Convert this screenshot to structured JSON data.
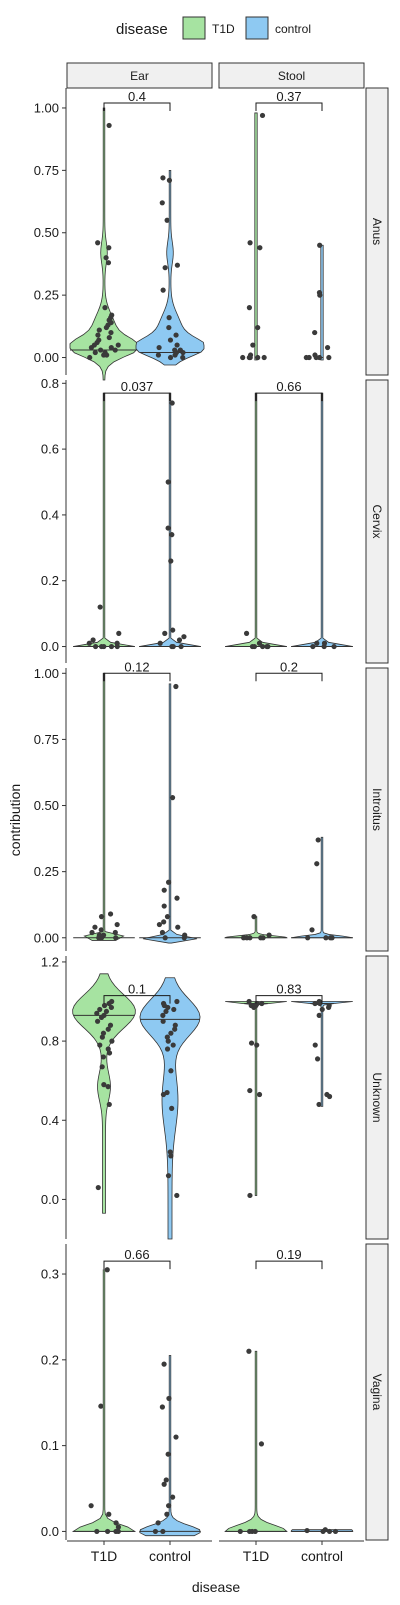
{
  "legend": {
    "title": "disease",
    "items": [
      {
        "label": "T1D",
        "color": "#a6e3a1"
      },
      {
        "label": "control",
        "color": "#8ec9f2"
      }
    ]
  },
  "columns": [
    "Ear",
    "Stool"
  ],
  "xlabel": "disease",
  "ylabel": "contribution",
  "chart_data": {
    "type": "violin",
    "categories": [
      "T1D",
      "control"
    ],
    "colors": {
      "T1D": "#a6e3a1",
      "control": "#8ec9f2"
    },
    "xlabel": "disease",
    "ylabel": "contribution",
    "columns": [
      "Ear",
      "Stool"
    ],
    "legend_position": "top",
    "grid": false,
    "rows": [
      {
        "name": "Anus",
        "ylim": [
          -0.07,
          1.08
        ],
        "yticks": [
          0,
          0.25,
          0.5,
          0.75,
          1
        ],
        "yticklabels": [
          "0.00",
          "0.25",
          "0.50",
          "0.75",
          "1.00"
        ],
        "panels": [
          {
            "column": "Ear",
            "pvalue": "0.4",
            "bracket_y": 1.02,
            "groups": [
              {
                "group": "T1D",
                "min": -0.09,
                "max": 1.0,
                "median": 0.03,
                "violin": "wide",
                "points": [
                  0.93,
                  0.46,
                  0.44,
                  0.4,
                  0.38,
                  0.2,
                  0.17,
                  0.16,
                  0.15,
                  0.14,
                  0.13,
                  0.12,
                  0.11,
                  0.1,
                  0.09,
                  0.08,
                  0.07,
                  0.06,
                  0.05,
                  0.05,
                  0.04,
                  0.04,
                  0.03,
                  0.03,
                  0.02,
                  0.02,
                  0.01,
                  0.01,
                  0.0
                ]
              },
              {
                "group": "control",
                "min": -0.03,
                "max": 0.75,
                "median": 0.02,
                "violin": "wide",
                "points": [
                  0.72,
                  0.71,
                  0.62,
                  0.55,
                  0.37,
                  0.36,
                  0.27,
                  0.16,
                  0.12,
                  0.09,
                  0.07,
                  0.05,
                  0.04,
                  0.03,
                  0.03,
                  0.02,
                  0.02,
                  0.01,
                  0.01,
                  0.0,
                  0.0
                ]
              }
            ]
          },
          {
            "column": "Stool",
            "pvalue": "0.37",
            "bracket_y": 1.02,
            "groups": [
              {
                "group": "T1D",
                "min": -0.01,
                "max": 0.98,
                "median": 0.0,
                "violin": "thin",
                "points": [
                  0.97,
                  0.46,
                  0.44,
                  0.2,
                  0.12,
                  0.05,
                  0.01,
                  0.0,
                  0.0,
                  0.0,
                  0.0,
                  0.0
                ]
              },
              {
                "group": "control",
                "min": -0.01,
                "max": 0.45,
                "median": 0.0,
                "violin": "thin",
                "points": [
                  0.45,
                  0.26,
                  0.25,
                  0.1,
                  0.04,
                  0.01,
                  0.0,
                  0.0,
                  0.0,
                  0.0,
                  0.0
                ]
              }
            ]
          }
        ]
      },
      {
        "name": "Cervix",
        "ylim": [
          -0.05,
          0.81
        ],
        "yticks": [
          0,
          0.2,
          0.4,
          0.6,
          0.8
        ],
        "yticklabels": [
          "0.0",
          "0.2",
          "0.4",
          "0.6",
          "0.8"
        ],
        "panels": [
          {
            "column": "Ear",
            "pvalue": "0.037",
            "bracket_y": 0.77,
            "groups": [
              {
                "group": "T1D",
                "min": 0.0,
                "max": 0.77,
                "median": 0.0,
                "violin": "flat",
                "points": [
                  0.12,
                  0.04,
                  0.02,
                  0.01,
                  0.01,
                  0.0,
                  0.0,
                  0.0,
                  0.0,
                  0.0
                ]
              },
              {
                "group": "control",
                "min": 0.0,
                "max": 0.77,
                "median": 0.0,
                "violin": "flat",
                "points": [
                  0.74,
                  0.5,
                  0.36,
                  0.34,
                  0.26,
                  0.05,
                  0.04,
                  0.03,
                  0.02,
                  0.01,
                  0.0,
                  0.0,
                  0.0
                ]
              }
            ]
          },
          {
            "column": "Stool",
            "pvalue": "0.66",
            "bracket_y": 0.77,
            "groups": [
              {
                "group": "T1D",
                "min": 0.0,
                "max": 0.77,
                "median": 0.0,
                "violin": "flat",
                "points": [
                  0.04,
                  0.01,
                  0.0,
                  0.0,
                  0.0,
                  0.0,
                  0.0
                ]
              },
              {
                "group": "control",
                "min": 0.0,
                "max": 0.77,
                "median": 0.0,
                "violin": "flat",
                "points": [
                  0.01,
                  0.01,
                  0.0,
                  0.0,
                  0.0
                ]
              }
            ]
          }
        ]
      },
      {
        "name": "Introitus",
        "ylim": [
          -0.05,
          1.02
        ],
        "yticks": [
          0,
          0.25,
          0.5,
          0.75,
          1
        ],
        "yticklabels": [
          "0.00",
          "0.25",
          "0.50",
          "0.75",
          "1.00"
        ],
        "panels": [
          {
            "column": "Ear",
            "pvalue": "0.12",
            "bracket_y": 1.0,
            "groups": [
              {
                "group": "T1D",
                "min": -0.01,
                "max": 1.0,
                "median": 0.0,
                "violin": "flat",
                "points": [
                  0.09,
                  0.08,
                  0.05,
                  0.04,
                  0.03,
                  0.02,
                  0.02,
                  0.01,
                  0.01,
                  0.0,
                  0.0,
                  0.0
                ]
              },
              {
                "group": "control",
                "min": -0.02,
                "max": 0.96,
                "median": 0.0,
                "violin": "flat",
                "points": [
                  0.95,
                  0.53,
                  0.21,
                  0.18,
                  0.15,
                  0.12,
                  0.08,
                  0.06,
                  0.05,
                  0.04,
                  0.02,
                  0.01,
                  0.0,
                  0.0
                ]
              }
            ]
          },
          {
            "column": "Stool",
            "pvalue": "0.2",
            "bracket_y": 1.0,
            "groups": [
              {
                "group": "T1D",
                "min": 0.0,
                "max": 0.08,
                "median": 0.0,
                "violin": "flat",
                "points": [
                  0.08,
                  0.01,
                  0.0,
                  0.0,
                  0.0,
                  0.0,
                  0.0
                ]
              },
              {
                "group": "control",
                "min": 0.0,
                "max": 0.38,
                "median": 0.0,
                "violin": "flat",
                "points": [
                  0.37,
                  0.28,
                  0.03,
                  0.0,
                  0.0,
                  0.0,
                  0.0
                ]
              }
            ]
          }
        ]
      },
      {
        "name": "Unknown",
        "ylim": [
          -0.2,
          1.23
        ],
        "yticks": [
          0,
          0.4,
          0.8,
          1.2
        ],
        "yticklabels": [
          "0.0",
          "0.4",
          "0.8",
          "1.2"
        ],
        "panels": [
          {
            "column": "Ear",
            "pvalue": "0.1",
            "bracket_y": 1.03,
            "groups": [
              {
                "group": "T1D",
                "min": -0.07,
                "max": 1.14,
                "median": 0.93,
                "violin": "unknown-t1d",
                "points": [
                  1.0,
                  0.99,
                  0.98,
                  0.97,
                  0.96,
                  0.95,
                  0.94,
                  0.93,
                  0.92,
                  0.9,
                  0.88,
                  0.86,
                  0.84,
                  0.82,
                  0.8,
                  0.78,
                  0.76,
                  0.74,
                  0.72,
                  0.67,
                  0.58,
                  0.57,
                  0.48,
                  0.06
                ]
              },
              {
                "group": "control",
                "min": -0.2,
                "max": 1.12,
                "median": 0.91,
                "violin": "unknown-ctrl",
                "points": [
                  1.0,
                  0.99,
                  0.98,
                  0.97,
                  0.96,
                  0.95,
                  0.93,
                  0.9,
                  0.88,
                  0.86,
                  0.84,
                  0.82,
                  0.8,
                  0.78,
                  0.76,
                  0.65,
                  0.54,
                  0.53,
                  0.46,
                  0.24,
                  0.22,
                  0.12,
                  0.02
                ]
              }
            ]
          },
          {
            "column": "Stool",
            "pvalue": "0.83",
            "bracket_y": 1.03,
            "groups": [
              {
                "group": "T1D",
                "min": 0.02,
                "max": 1.0,
                "median": 0.99,
                "violin": "flat-top",
                "points": [
                  1.0,
                  0.99,
                  0.99,
                  0.98,
                  0.98,
                  0.97,
                  0.79,
                  0.78,
                  0.55,
                  0.53,
                  0.02
                ]
              },
              {
                "group": "control",
                "min": 0.47,
                "max": 1.0,
                "median": 0.99,
                "violin": "flat-top",
                "points": [
                  1.0,
                  0.99,
                  0.99,
                  0.98,
                  0.97,
                  0.96,
                  0.93,
                  0.78,
                  0.71,
                  0.53,
                  0.52,
                  0.48
                ]
              }
            ]
          }
        ]
      },
      {
        "name": "Vagina",
        "ylim": [
          -0.01,
          0.335
        ],
        "yticks": [
          0,
          0.1,
          0.2,
          0.3
        ],
        "yticklabels": [
          "0.0",
          "0.1",
          "0.2",
          "0.3"
        ],
        "panels": [
          {
            "column": "Ear",
            "pvalue": "0.66",
            "bracket_y": 0.315,
            "groups": [
              {
                "group": "T1D",
                "min": 0.0,
                "max": 0.305,
                "median": 0.0,
                "violin": "flat",
                "points": [
                  0.305,
                  0.146,
                  0.03,
                  0.02,
                  0.01,
                  0.005,
                  0.0,
                  0.0,
                  0.0,
                  0.0
                ]
              },
              {
                "group": "control",
                "min": -0.005,
                "max": 0.205,
                "median": 0.0,
                "violin": "flat",
                "points": [
                  0.195,
                  0.155,
                  0.145,
                  0.11,
                  0.09,
                  0.06,
                  0.055,
                  0.04,
                  0.03,
                  0.02,
                  0.01,
                  0.0,
                  0.0
                ]
              }
            ]
          },
          {
            "column": "Stool",
            "pvalue": "0.19",
            "bracket_y": 0.315,
            "groups": [
              {
                "group": "T1D",
                "min": 0.0,
                "max": 0.21,
                "median": 0.0,
                "violin": "flat",
                "points": [
                  0.21,
                  0.102,
                  0.0,
                  0.0,
                  0.0,
                  0.0
                ]
              },
              {
                "group": "control",
                "min": 0.0,
                "max": 0.002,
                "median": 0.0,
                "violin": "flat",
                "points": [
                  0.002,
                  0.001,
                  0.0,
                  0.0,
                  0.0
                ]
              }
            ]
          }
        ]
      }
    ]
  }
}
